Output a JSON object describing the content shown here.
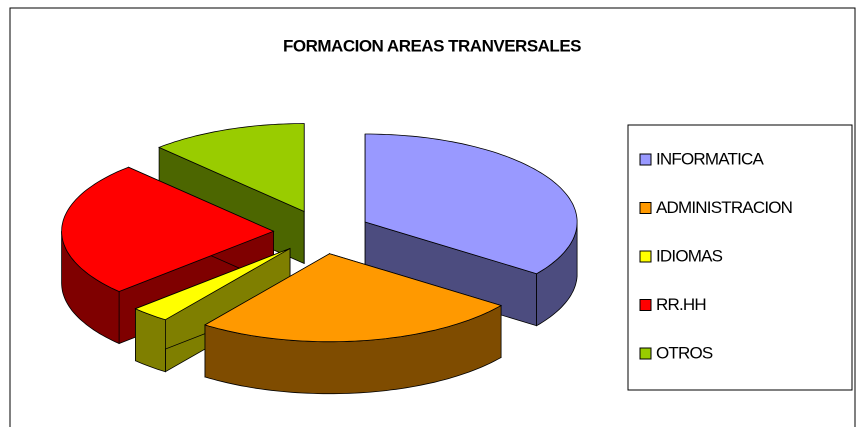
{
  "chart_data": {
    "type": "pie3d",
    "title": "FORMACION AREAS TRANVERSALES",
    "categories": [
      "INFORMATICA",
      "ADMINISTRACION",
      "IDIOMAS",
      "RR.HH",
      "OTROS"
    ],
    "values": [
      35,
      25,
      3,
      25,
      12
    ],
    "colors": [
      "#9999ff",
      "#ff9900",
      "#ffff00",
      "#ff0000",
      "#99cc00"
    ],
    "legend": "right"
  }
}
